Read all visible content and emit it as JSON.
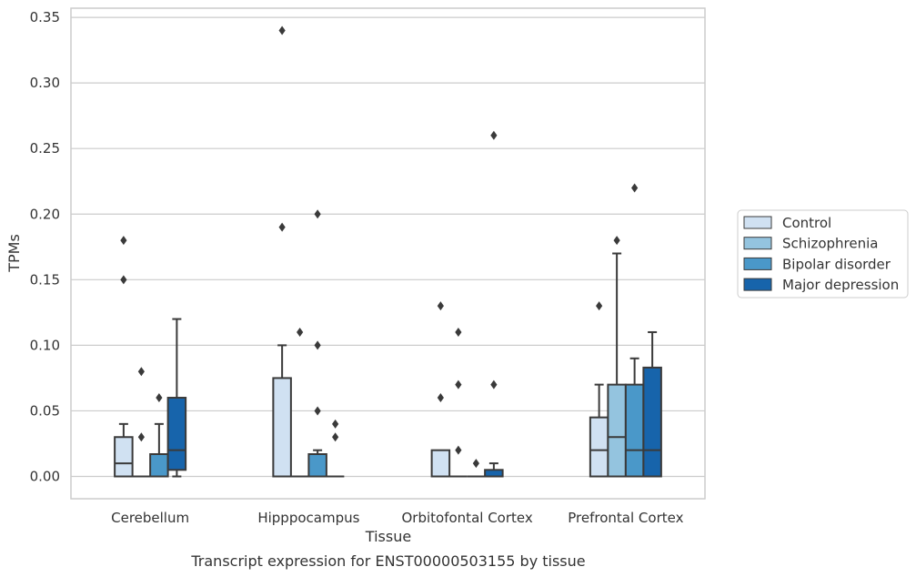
{
  "chart_data": {
    "type": "box",
    "title": "",
    "caption": "Transcript expression for ENST00000503155 by tissue",
    "xlabel": "Tissue",
    "ylabel": "TPMs",
    "ylim": [
      -0.017,
      0.357
    ],
    "yticks": [
      "0.00",
      "0.05",
      "0.10",
      "0.15",
      "0.20",
      "0.25",
      "0.30",
      "0.35"
    ],
    "ytick_values": [
      0,
      0.05,
      0.1,
      0.15,
      0.2,
      0.25,
      0.3,
      0.35
    ],
    "grid": "horizontal",
    "legend_position": "right",
    "categories": [
      "Cerebellum",
      "Hipppocampus",
      "Orbitofontal Cortex",
      "Prefrontal Cortex"
    ],
    "series": [
      {
        "name": "Control",
        "color": "#d0e1f2",
        "boxes": [
          {
            "min": 0,
            "q1": 0,
            "median": 0.01,
            "q3": 0.03,
            "max": 0.04,
            "outliers": [
              0.15,
              0.18
            ]
          },
          {
            "min": 0,
            "q1": 0,
            "median": 0,
            "q3": 0.075,
            "max": 0.1,
            "outliers": [
              0.19,
              0.34
            ]
          },
          {
            "min": 0,
            "q1": 0,
            "median": 0,
            "q3": 0.02,
            "max": 0.02,
            "outliers": [
              0.06,
              0.13
            ]
          },
          {
            "min": 0,
            "q1": 0,
            "median": 0.02,
            "q3": 0.045,
            "max": 0.07,
            "outliers": [
              0.13
            ]
          }
        ]
      },
      {
        "name": "Schizophrenia",
        "color": "#94c4df",
        "boxes": [
          {
            "min": 0,
            "q1": 0,
            "median": 0,
            "q3": 0,
            "max": 0,
            "outliers": [
              0.03,
              0.08
            ]
          },
          {
            "min": 0,
            "q1": 0,
            "median": 0,
            "q3": 0,
            "max": 0,
            "outliers": [
              0.11
            ]
          },
          {
            "min": 0,
            "q1": 0,
            "median": 0,
            "q3": 0,
            "max": 0,
            "outliers": [
              0.02,
              0.07,
              0.11
            ]
          },
          {
            "min": 0,
            "q1": 0,
            "median": 0.03,
            "q3": 0.07,
            "max": 0.17,
            "outliers": [
              0.18
            ]
          }
        ]
      },
      {
        "name": "Bipolar disorder",
        "color": "#4a98c9",
        "boxes": [
          {
            "min": 0,
            "q1": 0,
            "median": 0,
            "q3": 0.017,
            "max": 0.04,
            "outliers": [
              0.06
            ]
          },
          {
            "min": 0,
            "q1": 0,
            "median": 0,
            "q3": 0.017,
            "max": 0.02,
            "outliers": [
              0.05,
              0.1,
              0.2
            ]
          },
          {
            "min": 0,
            "q1": 0,
            "median": 0,
            "q3": 0,
            "max": 0,
            "outliers": [
              0.01
            ]
          },
          {
            "min": 0,
            "q1": 0,
            "median": 0.02,
            "q3": 0.07,
            "max": 0.09,
            "outliers": [
              0.22
            ]
          }
        ]
      },
      {
        "name": "Major depression",
        "color": "#1764ab",
        "boxes": [
          {
            "min": 0,
            "q1": 0.005,
            "median": 0.02,
            "q3": 0.06,
            "max": 0.12,
            "outliers": []
          },
          {
            "min": 0,
            "q1": 0,
            "median": 0,
            "q3": 0,
            "max": 0,
            "outliers": [
              0.03,
              0.04
            ]
          },
          {
            "min": 0,
            "q1": 0,
            "median": 0,
            "q3": 0.005,
            "max": 0.01,
            "outliers": [
              0.07,
              0.26
            ]
          },
          {
            "min": 0,
            "q1": 0,
            "median": 0.02,
            "q3": 0.083,
            "max": 0.11,
            "outliers": []
          }
        ]
      }
    ]
  }
}
